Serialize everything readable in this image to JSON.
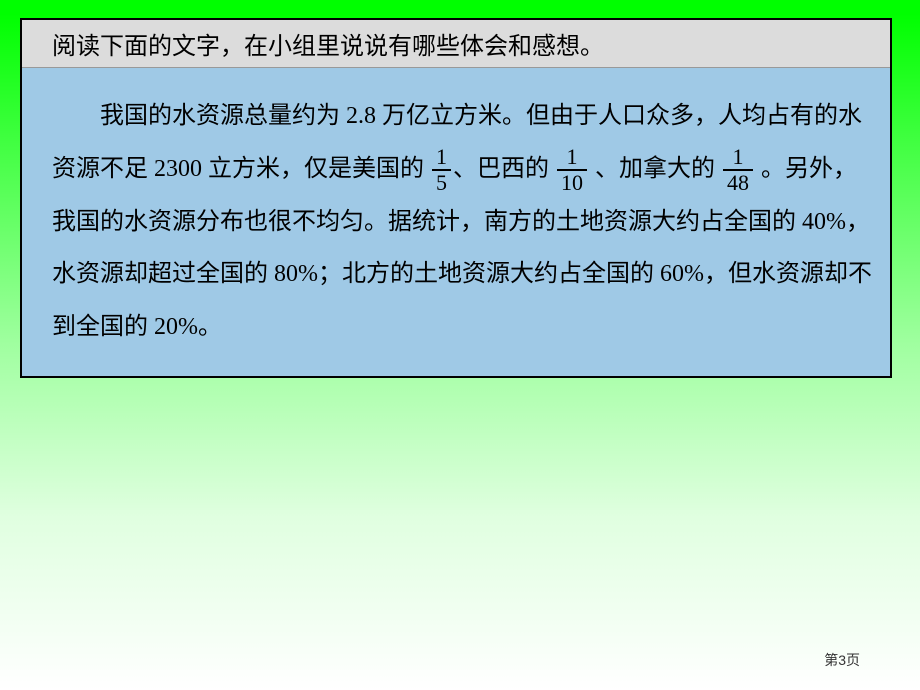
{
  "header": {
    "text": "阅读下面的文字，在小组里说说有哪些体会和感想。"
  },
  "body": {
    "seg1": "我国的水资源总量约为 2.8 万亿立方米。但由于人口众多，人均占有的水资源不足 2300 立方米，仅是美国的 ",
    "frac1_num": "1",
    "frac1_den": "5",
    "seg2": "、巴西的 ",
    "frac2_num": "1",
    "frac2_den": "10",
    "seg3": " 、加拿大的 ",
    "frac3_num": "1",
    "frac3_den": "48",
    "seg4": " 。另外，我国的水资源分布也很不均匀。据统计，南方的土地资源大约占全国的 40%，水资源却超过全国的 80%；北方的土地资源大约占全国的 60%，但水资源却不到全国的 20%。"
  },
  "footer": {
    "page": "第3页"
  },
  "colors": {
    "border_green": "#00ff00",
    "header_bg": "#dcdcdc",
    "body_bg": "#9fc9e6",
    "text": "#000000"
  }
}
